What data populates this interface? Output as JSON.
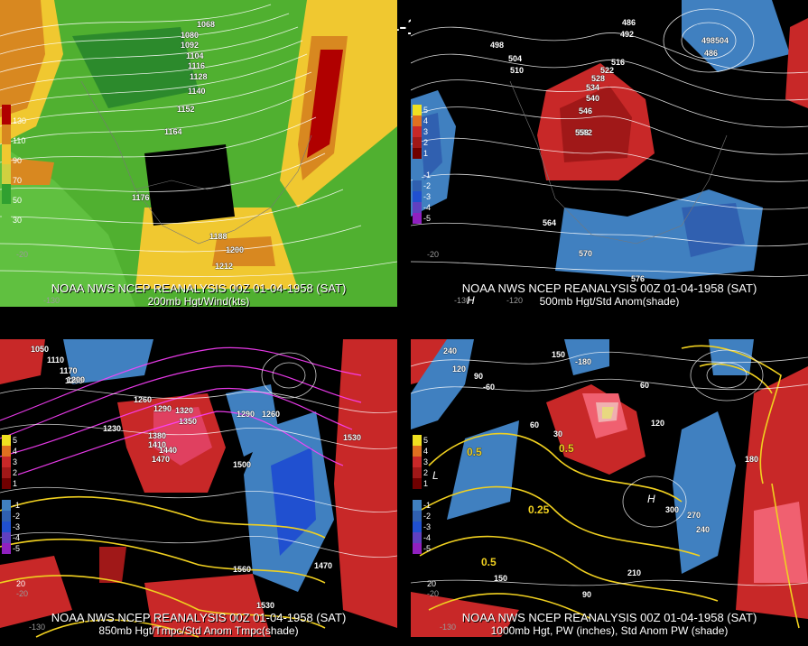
{
  "title": "00Z 01-04-1958 (SAT)",
  "panels": [
    {
      "id": "p1",
      "footer1": "NOAA NWS NCEP REANALYSIS 00Z 01-04-1958 (SAT)",
      "footer2": "200mb Hgt/Wind(kts)",
      "legend": [
        {
          "label": "130",
          "color": "#b00000"
        },
        {
          "label": "110",
          "color": "#d88820"
        },
        {
          "label": "90",
          "color": "#f0c830"
        },
        {
          "label": "70",
          "color": "#d0d040"
        },
        {
          "label": "50",
          "color": "#30a030"
        },
        {
          "label": "30",
          "color": "#60c040"
        }
      ],
      "contour_labels": [
        "1068",
        "1080",
        "1092",
        "1104",
        "1116",
        "1128",
        "1140",
        "1152",
        "1164",
        "1176",
        "1188",
        "1200",
        "1212"
      ],
      "axis": [
        "-20",
        "-130"
      ]
    },
    {
      "id": "p2",
      "footer1": "NOAA NWS NCEP REANALYSIS 00Z 01-04-1958 (SAT)",
      "footer2": "500mb Hgt/Std Anom(shade)",
      "legend": [
        {
          "label": "5",
          "color": "#f0e020"
        },
        {
          "label": "4",
          "color": "#e07020"
        },
        {
          "label": "3",
          "color": "#c82828"
        },
        {
          "label": "2",
          "color": "#a01818"
        },
        {
          "label": "1",
          "color": "#700000"
        },
        {
          "label": "-1",
          "color": "#4080c0"
        },
        {
          "label": "-2",
          "color": "#3060b0"
        },
        {
          "label": "-3",
          "color": "#2050d0"
        },
        {
          "label": "-4",
          "color": "#6040c0"
        },
        {
          "label": "-5",
          "color": "#9020c0"
        }
      ],
      "contour_labels": [
        "486",
        "492",
        "498",
        "504",
        "510",
        "516",
        "522",
        "528",
        "534",
        "540",
        "546",
        "552",
        "558",
        "564",
        "570",
        "576",
        "486",
        "498",
        "504"
      ],
      "axis": [
        "-20",
        "-130",
        "-120",
        "H"
      ]
    },
    {
      "id": "p3",
      "footer1": "NOAA NWS NCEP REANALYSIS 00Z 01-04-1958 (SAT)",
      "footer2": "850mb Hgt/Tmpc/Std Anom Tmpc(shade)",
      "legend": [
        {
          "label": "5",
          "color": "#f0e020"
        },
        {
          "label": "4",
          "color": "#e07020"
        },
        {
          "label": "3",
          "color": "#c82828"
        },
        {
          "label": "2",
          "color": "#a01818"
        },
        {
          "label": "1",
          "color": "#700000"
        },
        {
          "label": "-1",
          "color": "#4080c0"
        },
        {
          "label": "-2",
          "color": "#3060b0"
        },
        {
          "label": "-3",
          "color": "#2050d0"
        },
        {
          "label": "-4",
          "color": "#6040c0"
        },
        {
          "label": "-5",
          "color": "#9020c0"
        }
      ],
      "contour_labels": [
        "1050",
        "1110",
        "1170",
        "1200",
        "1230",
        "1260",
        "1290",
        "1320",
        "1350",
        "1380",
        "1410",
        "1440",
        "1470",
        "1500",
        "1530",
        "1560",
        "1470",
        "1530",
        "1200",
        "1290",
        "1260"
      ],
      "axis": [
        "-20",
        "-130",
        "20"
      ]
    },
    {
      "id": "p4",
      "footer1": "NOAA NWS NCEP REANALYSIS 00Z 01-04-1958 (SAT)",
      "footer2": "1000mb Hgt, PW (inches), Std Anom PW (shade)",
      "legend": [
        {
          "label": "5",
          "color": "#f0e020"
        },
        {
          "label": "4",
          "color": "#e07020"
        },
        {
          "label": "3",
          "color": "#c82828"
        },
        {
          "label": "2",
          "color": "#a01818"
        },
        {
          "label": "1",
          "color": "#700000"
        },
        {
          "label": "-1",
          "color": "#4080c0"
        },
        {
          "label": "-2",
          "color": "#3060b0"
        },
        {
          "label": "-3",
          "color": "#2050d0"
        },
        {
          "label": "-4",
          "color": "#6040c0"
        },
        {
          "label": "-5",
          "color": "#9020c0"
        }
      ],
      "contour_labels": [
        "240",
        "120",
        "90",
        "60",
        "30",
        "-60",
        "-180",
        "150",
        "180",
        "120",
        "300",
        "270",
        "240",
        "210",
        "150",
        "90",
        "60",
        "0.5",
        "0.25",
        "0.5",
        "0.5"
      ],
      "axis": [
        "-20",
        "-130",
        "20",
        "H",
        "L"
      ]
    }
  ]
}
